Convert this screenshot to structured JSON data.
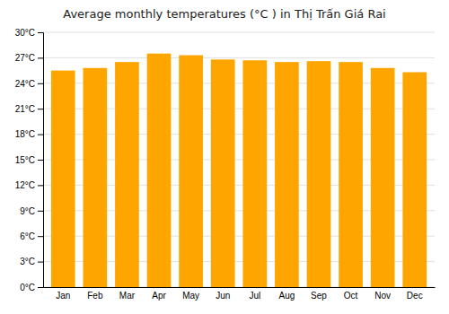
{
  "chart_data": {
    "type": "bar",
    "title": "Average monthly temperatures (°C ) in Thị Trấn Giá Rai",
    "categories": [
      "Jan",
      "Feb",
      "Mar",
      "Apr",
      "May",
      "Jun",
      "Jul",
      "Aug",
      "Sep",
      "Oct",
      "Nov",
      "Dec"
    ],
    "values": [
      25.5,
      25.8,
      26.5,
      27.5,
      27.3,
      26.8,
      26.7,
      26.5,
      26.6,
      26.5,
      25.8,
      25.3
    ],
    "color": "#FFA500",
    "ylim": [
      0,
      30
    ],
    "yticks": [
      {
        "value": 0,
        "label": "0°C"
      },
      {
        "value": 3,
        "label": "3°C"
      },
      {
        "value": 6,
        "label": "6°C"
      },
      {
        "value": 9,
        "label": "9°C"
      },
      {
        "value": 12,
        "label": "12°C"
      },
      {
        "value": 15,
        "label": "15°C"
      },
      {
        "value": 18,
        "label": "18°C"
      },
      {
        "value": 21,
        "label": "21°C"
      },
      {
        "value": 24,
        "label": "24°C"
      },
      {
        "value": 27,
        "label": "27°C"
      },
      {
        "value": 30,
        "label": "30°C"
      }
    ],
    "grid": true
  }
}
